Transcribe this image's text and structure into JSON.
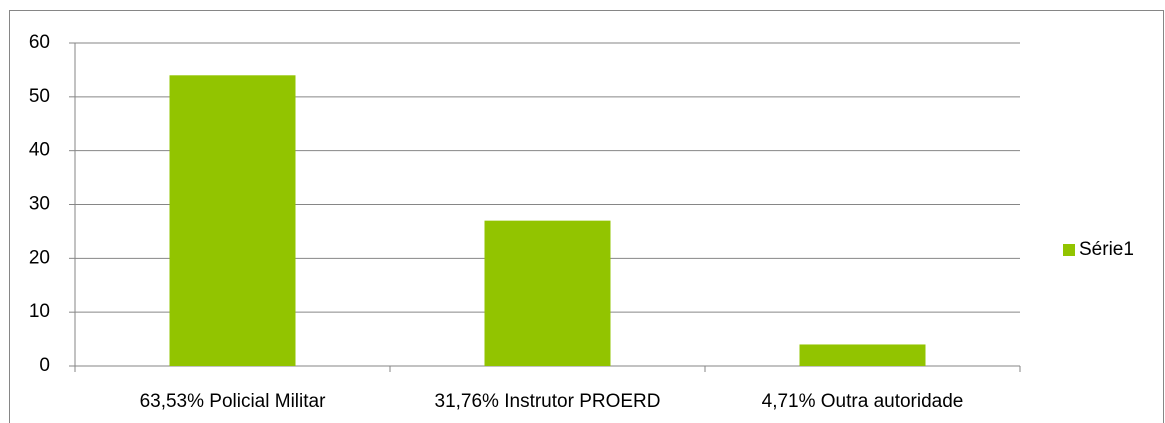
{
  "chart_data": {
    "type": "bar",
    "categories": [
      "63,53% Policial Militar",
      "31,76% Instrutor PROERD",
      "4,71% Outra autoridade"
    ],
    "series": [
      {
        "name": "Série1",
        "color": "#92c400",
        "values": [
          54,
          27,
          4
        ]
      }
    ],
    "ylim": [
      0,
      60
    ],
    "yticks": [
      0,
      10,
      20,
      30,
      40,
      50,
      60
    ],
    "grid": true,
    "legend": "right"
  }
}
